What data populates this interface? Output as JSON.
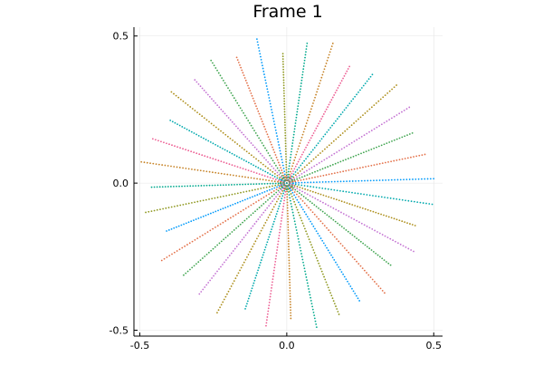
{
  "chart_data": {
    "type": "scatter",
    "title": "Frame 1",
    "xlabel": "",
    "ylabel": "",
    "xlim": [
      -0.52,
      0.53
    ],
    "ylim": [
      -0.52,
      0.53
    ],
    "grid": true,
    "legend": "none",
    "x_ticks": [
      "-0.5",
      "0.0",
      "0.5"
    ],
    "y_ticks": [
      "-0.5",
      "0.0",
      "0.5"
    ],
    "x_tick_values": [
      -0.5,
      0.0,
      0.5
    ],
    "y_tick_values": [
      -0.5,
      0.0,
      0.5
    ],
    "rays": {
      "count": 36,
      "points_per_ray": 50,
      "inner_radius": 0.0,
      "outer_radii": [
        0.5,
        0.48,
        0.46,
        0.49,
        0.5,
        0.47,
        0.45,
        0.5,
        0.48,
        0.44,
        0.5,
        0.46,
        0.49,
        0.47,
        0.5,
        0.45,
        0.48,
        0.5,
        0.46,
        0.49,
        0.44,
        0.5,
        0.47,
        0.48,
        0.5,
        0.45,
        0.49,
        0.46,
        0.5,
        0.48,
        0.47,
        0.5,
        0.45,
        0.49,
        0.46,
        0.5
      ]
    },
    "series_colors": [
      "#009AFA",
      "#E36F47",
      "#3EA44E",
      "#C371D2",
      "#AC8D18",
      "#00A9AD",
      "#ED5E93",
      "#C68225",
      "#00A98D",
      "#8E971E"
    ]
  }
}
